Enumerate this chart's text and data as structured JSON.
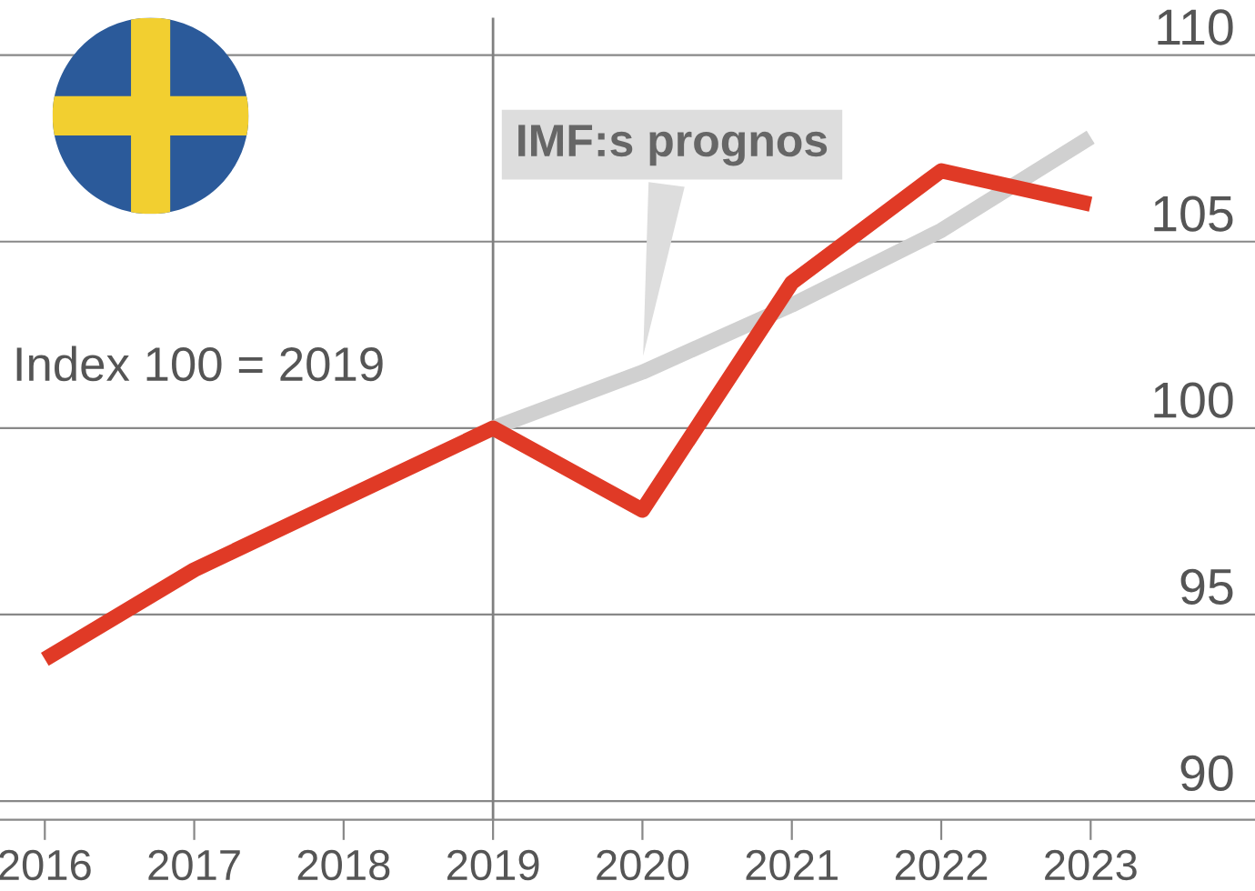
{
  "chart_data": {
    "type": "line",
    "x": [
      2016,
      2017,
      2018,
      2019,
      2020,
      2021,
      2022,
      2023
    ],
    "series": [
      {
        "color": "#d0d0d0",
        "x": [
          2019,
          2020,
          2021,
          2022,
          2023
        ],
        "values": [
          100,
          101.5,
          103.3,
          105.3,
          107.8
        ]
      },
      {
        "color": "#e03a26",
        "values": [
          93.8,
          96.2,
          98.1,
          100,
          97.8,
          103.9,
          106.9,
          106.0
        ]
      }
    ],
    "xlim": [
      2015.7,
      2024.1
    ],
    "xticks": [
      2016,
      2017,
      2018,
      2019,
      2020,
      2021,
      2022,
      2023
    ],
    "ylim": [
      89.5,
      111
    ],
    "yticks": [
      90,
      95,
      100,
      105,
      110
    ],
    "grid": "y",
    "legend": false,
    "marker": "none",
    "line_style": "solid",
    "ref_lines": [
      {
        "axis": "x",
        "value": 2019,
        "color": "#808080"
      }
    ],
    "annotations": [
      {
        "text": "IMF:s prognos",
        "x": 2020,
        "y": 101.5
      },
      "Index 100 = 2019"
    ]
  }
}
